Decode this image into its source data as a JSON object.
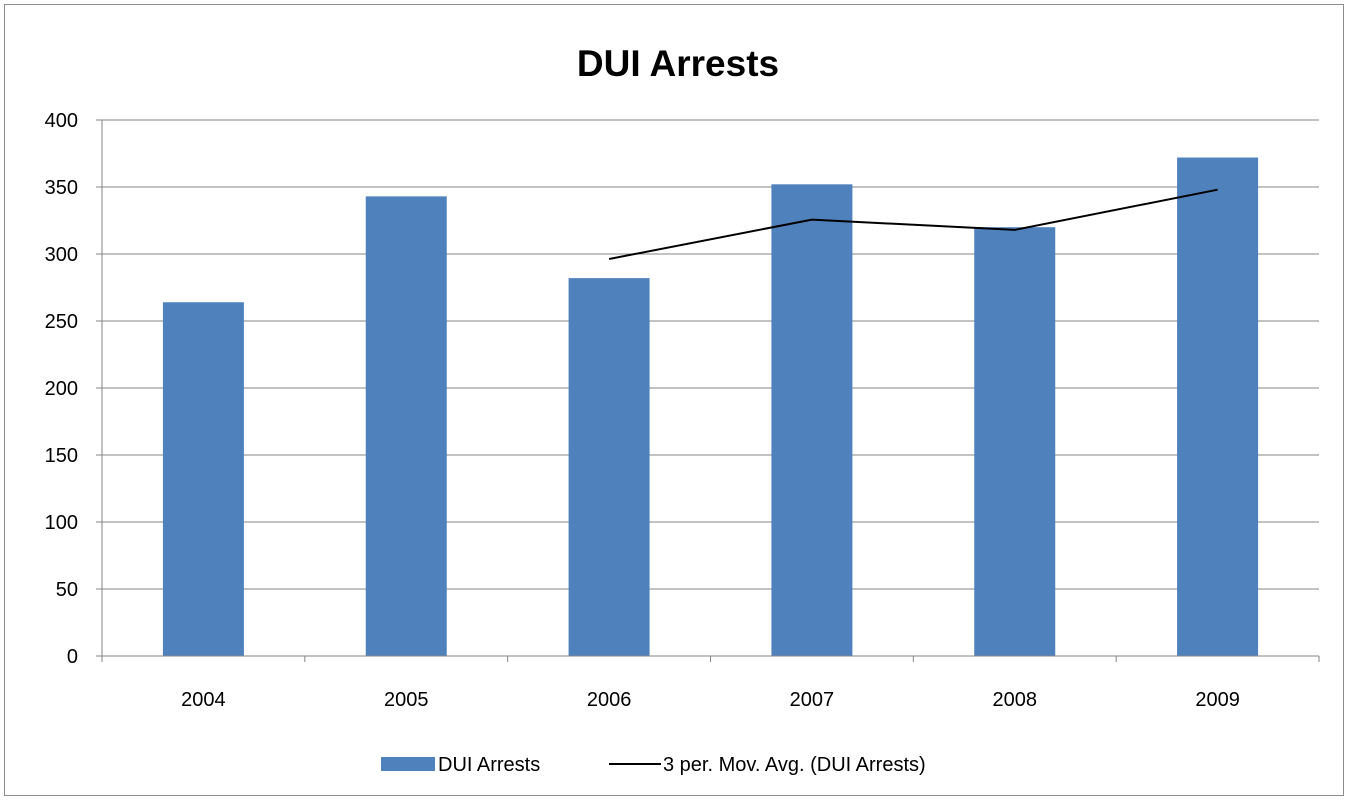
{
  "chart_data": {
    "type": "bar",
    "title": "DUI Arrests",
    "xlabel": "",
    "ylabel": "",
    "categories": [
      "2004",
      "2005",
      "2006",
      "2007",
      "2008",
      "2009"
    ],
    "series": [
      {
        "name": "DUI Arrests",
        "kind": "bar",
        "color": "#4f81bd",
        "values": [
          264,
          343,
          282,
          352,
          320,
          372
        ]
      },
      {
        "name": "3 per. Mov. Avg. (DUI Arrests)",
        "kind": "line",
        "color": "#000000",
        "values": [
          null,
          null,
          296.3,
          325.7,
          318,
          348
        ]
      }
    ],
    "ylim": [
      0,
      400
    ],
    "yticks": [
      "0",
      "50",
      "100",
      "150",
      "200",
      "250",
      "300",
      "350",
      "400"
    ],
    "grid": true,
    "legend": "bottom"
  }
}
